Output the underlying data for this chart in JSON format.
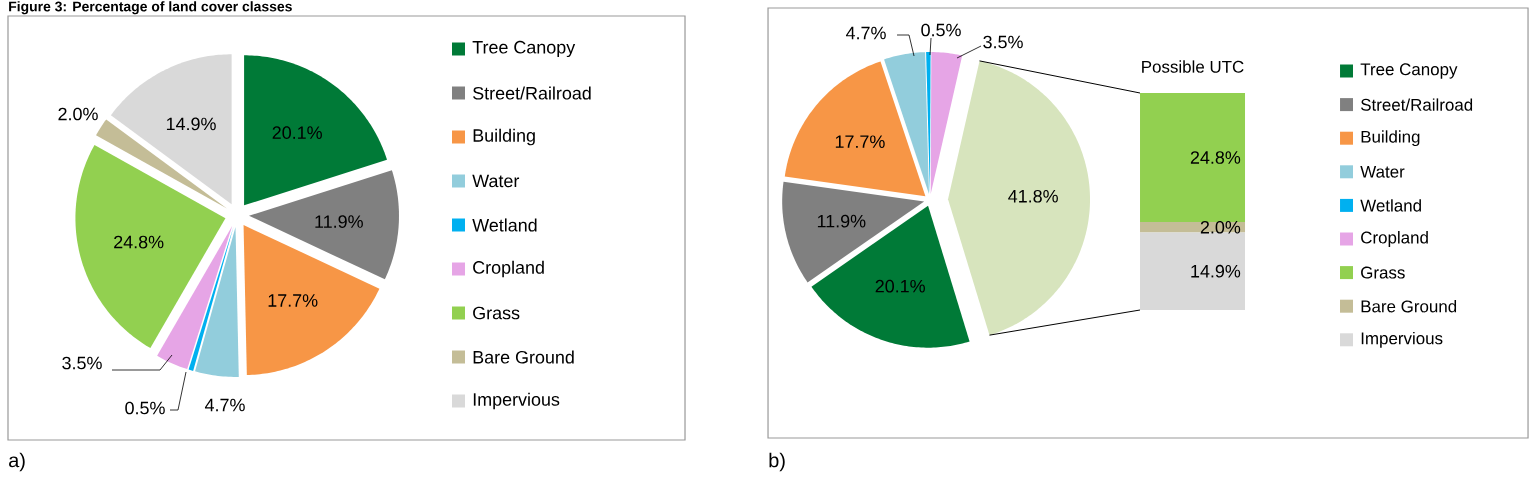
{
  "chart_data": [
    {
      "type": "pie",
      "title": "Figure 3: Percentage of land cover classes",
      "categories": [
        "Tree Canopy",
        "Street/Railroad",
        "Building",
        "Water",
        "Wetland",
        "Cropland",
        "Grass",
        "Bare Ground",
        "Impervious"
      ],
      "values": [
        20.1,
        11.9,
        17.7,
        4.7,
        0.5,
        3.5,
        24.8,
        2.0,
        14.9
      ],
      "colors": [
        "#007a37",
        "#808080",
        "#f79646",
        "#92cddc",
        "#00b0f0",
        "#e6a5e6",
        "#92d050",
        "#c4bd97",
        "#d9d9d9"
      ],
      "value_labels": [
        "20.1%",
        "11.9%",
        "17.7%",
        "4.7%",
        "0.5%",
        "3.5%",
        "24.8%",
        "2.0%",
        "14.9%"
      ],
      "legend": "right",
      "annotations": [
        "a)"
      ]
    },
    {
      "type": "pie",
      "categories": [
        "Tree Canopy",
        "Street/Railroad",
        "Building",
        "Water",
        "Wetland",
        "Cropland",
        null
      ],
      "values": [
        20.1,
        11.9,
        17.7,
        4.7,
        0.5,
        3.5,
        41.8
      ],
      "colors": [
        "#007a37",
        "#808080",
        "#f79646",
        "#92cddc",
        "#00b0f0",
        "#e6a5e6",
        "#d7e4bd"
      ],
      "value_labels": [
        "20.1%",
        "11.9%",
        "17.7%",
        "4.7%",
        "0.5%",
        "3.5%",
        "41.8%"
      ],
      "legend": "right",
      "annotations": [
        "b)"
      ]
    },
    {
      "type": "bar",
      "stacked": true,
      "title": "Possible UTC",
      "categories": [
        null
      ],
      "legend": "right",
      "series": [
        {
          "name": "Impervious",
          "color": "#d9d9d9",
          "values": [
            14.9
          ],
          "value_labels": [
            "14.9%"
          ]
        },
        {
          "name": "Bare Ground",
          "color": "#c4bd97",
          "values": [
            2.0
          ],
          "value_labels": [
            "2.0%"
          ]
        },
        {
          "name": "Grass",
          "color": "#92d050",
          "values": [
            24.8
          ],
          "value_labels": [
            "24.8%"
          ]
        }
      ]
    }
  ]
}
